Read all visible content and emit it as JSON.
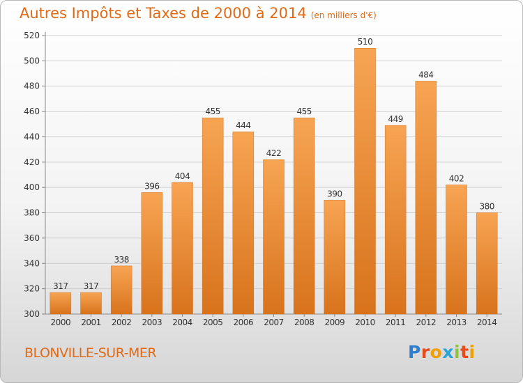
{
  "header": {
    "title": "Autres Impôts et Taxes de 2000 à 2014",
    "subtitle": "(en milliers d'€)"
  },
  "footer": {
    "town": "BLONVILLE-SUR-MER",
    "logo": {
      "letters": [
        "P",
        "r",
        "o",
        "x",
        "i",
        "t",
        "i"
      ],
      "colors": [
        "#2f7fd0",
        "#e84a1a",
        "#f0a000",
        "#2aa5d8",
        "#8cc43c",
        "#e84a1a",
        "#f0a000"
      ]
    }
  },
  "colors": {
    "accent": "#e06a16",
    "bar_light": "#f7a453",
    "bar_dark": "#d8731c",
    "grid": "#cfcfcf"
  },
  "chart_data": {
    "type": "bar",
    "categories": [
      "2000",
      "2001",
      "2002",
      "2003",
      "2004",
      "2005",
      "2006",
      "2007",
      "2008",
      "2009",
      "2010",
      "2011",
      "2012",
      "2013",
      "2014"
    ],
    "values": [
      317,
      317,
      338,
      396,
      404,
      455,
      444,
      422,
      455,
      390,
      510,
      449,
      484,
      402,
      380
    ],
    "ylim": [
      300,
      520
    ],
    "yticks": [
      300,
      320,
      340,
      360,
      380,
      400,
      420,
      440,
      460,
      480,
      500,
      520
    ],
    "xlabel": "",
    "ylabel": "",
    "grid": true,
    "data_labels": true
  }
}
